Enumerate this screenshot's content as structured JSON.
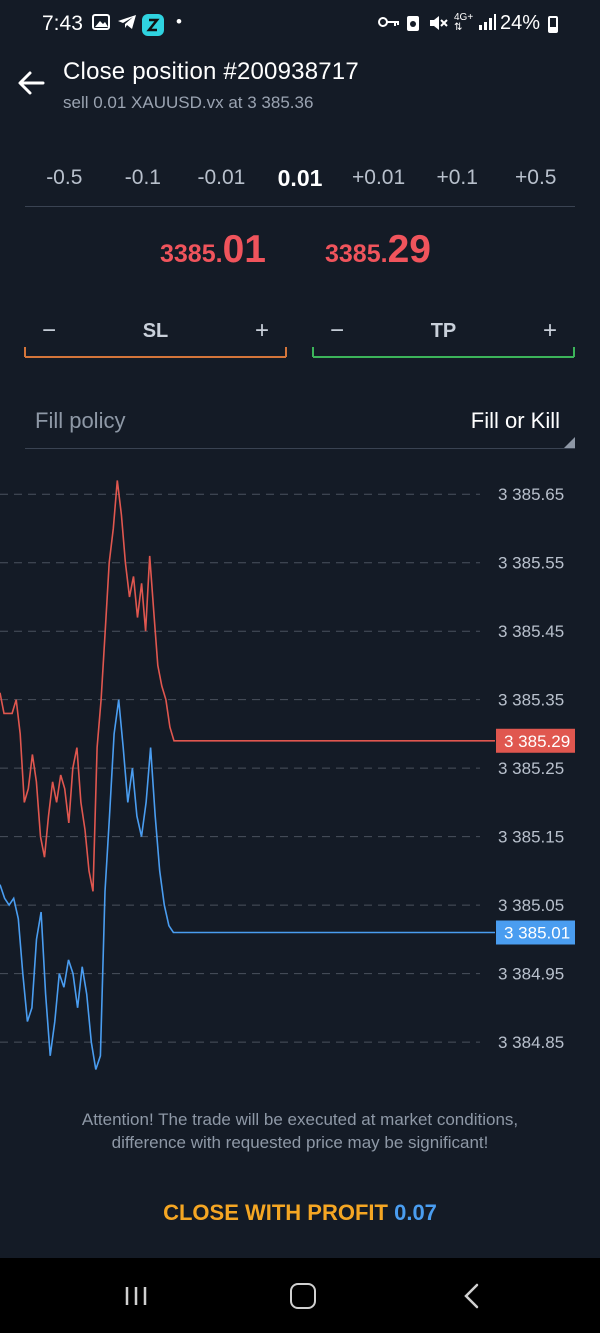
{
  "status_bar": {
    "time": "7:43",
    "battery": "24%",
    "left_icons": [
      "image-icon",
      "telegram-icon",
      "app-icon",
      "dot-icon"
    ],
    "right_icons": [
      "key-icon",
      "recycle-icon",
      "mute-icon",
      "4g-icon",
      "signal-icon",
      "battery-icon"
    ]
  },
  "header": {
    "title": "Close position #200938717",
    "subtitle": "sell 0.01 XAUUSD.vx at 3 385.36"
  },
  "lot_options": [
    "-0.5",
    "-0.1",
    "-0.01",
    "0.01",
    "+0.01",
    "+0.1",
    "+0.5"
  ],
  "lot_selected": "0.01",
  "prices": {
    "bid_prefix": "3385.",
    "bid_suffix": "01",
    "ask_prefix": "3385.",
    "ask_suffix": "29",
    "color": "#f0545c"
  },
  "sl": {
    "minus": "−",
    "label": "SL",
    "plus": "+",
    "color": "#d4753a"
  },
  "tp": {
    "minus": "−",
    "label": "TP",
    "plus": "+",
    "color": "#3cb45a"
  },
  "fill_policy": {
    "label": "Fill policy",
    "value": "Fill or Kill"
  },
  "chart_data": {
    "type": "line",
    "ylim": [
      3384.78,
      3385.7
    ],
    "y_ticks": [
      "3 385.65",
      "3 385.55",
      "3 385.45",
      "3 385.35",
      "3 385.25",
      "3 385.15",
      "3 385.05",
      "3 384.95",
      "3 384.85"
    ],
    "grid": true,
    "series": [
      {
        "color": "#e0574f",
        "current_label": "3 385.29",
        "values": [
          3385.36,
          3385.33,
          3385.33,
          3385.33,
          3385.35,
          3385.3,
          3385.2,
          3385.22,
          3385.27,
          3385.23,
          3385.15,
          3385.12,
          3385.18,
          3385.23,
          3385.2,
          3385.24,
          3385.22,
          3385.17,
          3385.25,
          3385.28,
          3385.2,
          3385.16,
          3385.1,
          3385.07,
          3385.28,
          3385.35,
          3385.45,
          3385.55,
          3385.6,
          3385.67,
          3385.62,
          3385.55,
          3385.5,
          3385.53,
          3385.47,
          3385.52,
          3385.45,
          3385.56,
          3385.48,
          3385.4,
          3385.37,
          3385.35,
          3385.31,
          3385.29,
          3385.29
        ]
      },
      {
        "color": "#4a9df0",
        "current_label": "3 385.01",
        "values": [
          3385.08,
          3385.06,
          3385.05,
          3385.06,
          3385.03,
          3384.95,
          3384.88,
          3384.9,
          3385.0,
          3385.04,
          3384.92,
          3384.83,
          3384.88,
          3384.95,
          3384.93,
          3384.97,
          3384.95,
          3384.9,
          3384.96,
          3384.92,
          3384.85,
          3384.81,
          3384.83,
          3385.07,
          3385.18,
          3385.3,
          3385.35,
          3385.28,
          3385.2,
          3385.25,
          3385.18,
          3385.15,
          3385.2,
          3385.28,
          3385.18,
          3385.1,
          3385.05,
          3385.02,
          3385.01,
          3385.01
        ]
      }
    ]
  },
  "attention": {
    "line1": "Attention! The trade will be executed at market conditions,",
    "line2": "difference with requested price may be significant!"
  },
  "close_button": {
    "text": "CLOSE WITH PROFIT",
    "value": "0.07"
  },
  "nav": [
    "recent-apps-icon",
    "home-icon",
    "back-icon"
  ]
}
